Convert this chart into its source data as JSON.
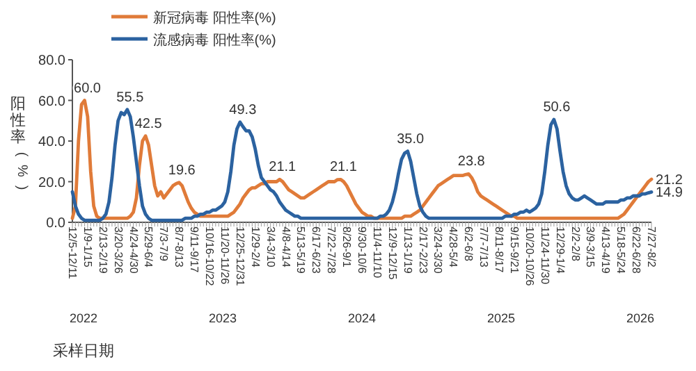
{
  "chart_data": {
    "type": "line",
    "xlabel": "采样日期",
    "ylabel": "阳性率(%)",
    "categories": [
      "12/5-12/11",
      null,
      null,
      null,
      null,
      "1/9-1/15",
      null,
      null,
      null,
      null,
      "2/13-2/19",
      null,
      null,
      null,
      null,
      "3/20-3/26",
      null,
      null,
      null,
      null,
      "4/24-4/30",
      null,
      null,
      null,
      null,
      "5/29-6/4",
      null,
      null,
      null,
      null,
      "7/3-7/9",
      null,
      null,
      null,
      null,
      "8/7-8/13",
      null,
      null,
      null,
      null,
      "9/11-9/17",
      null,
      null,
      null,
      null,
      "10/16-10/22",
      null,
      null,
      null,
      null,
      "11/20-11/26",
      null,
      null,
      null,
      null,
      "12/25-12/31",
      null,
      null,
      null,
      null,
      "1/29-2/4",
      null,
      null,
      null,
      null,
      "3/4-3/10",
      null,
      null,
      null,
      null,
      "4/8-4/14",
      null,
      null,
      null,
      null,
      "5/13-5/19",
      null,
      null,
      null,
      null,
      "6/17-6/23",
      null,
      null,
      null,
      null,
      "7/22-7/28",
      null,
      null,
      null,
      null,
      "8/26-9/1",
      null,
      null,
      null,
      null,
      "9/30-10/6",
      null,
      null,
      null,
      null,
      "11/4-11/10",
      null,
      null,
      null,
      null,
      "12/9-12/15",
      null,
      null,
      null,
      null,
      "1/13-1/19",
      null,
      null,
      null,
      null,
      "2/17-2/23",
      null,
      null,
      null,
      null,
      "3/24-3/30",
      null,
      null,
      null,
      null,
      "4/28-5/4",
      null,
      null,
      null,
      null,
      "6/2-6/8",
      null,
      null,
      null,
      null,
      "7/7-7/13",
      null,
      null,
      null,
      null,
      "8/11-8/17",
      null,
      null,
      null,
      null,
      "9/15-9/21",
      null,
      null,
      null,
      null,
      "10/20-10/26",
      null,
      null,
      null,
      null,
      "11/24-11/30",
      null,
      null,
      null,
      null,
      "12/29-1/4",
      null,
      null,
      null,
      null,
      "2/2-2/8",
      null,
      null,
      null,
      null,
      "3/9-3/15",
      null,
      null,
      null,
      null,
      "4/13-4/19",
      null,
      null,
      null,
      null,
      "5/18-5/24",
      null,
      null,
      null,
      null,
      "6/22-6/28",
      null,
      null,
      null,
      null,
      "7/27-8/2"
    ],
    "ylim": [
      0,
      80
    ],
    "yticks": [
      {
        "value": 0,
        "label": "0.0"
      },
      {
        "value": 20,
        "label": "20.0"
      },
      {
        "value": 40,
        "label": "40.0"
      },
      {
        "value": 60,
        "label": "60.0"
      },
      {
        "value": 80,
        "label": "80.0"
      }
    ],
    "legend": "top",
    "grid": false,
    "marker": "none",
    "line_style": "solid",
    "series": [
      {
        "name": "新冠病毒 阳性率(%)",
        "color": "#e07b39",
        "values": [
          2,
          8,
          40,
          58,
          60,
          52,
          25,
          8,
          3,
          2,
          2,
          2,
          2,
          2,
          2,
          2,
          2,
          2,
          2,
          3,
          5,
          12,
          28,
          40,
          42.5,
          38,
          28,
          18,
          13,
          15,
          12,
          14,
          16,
          18,
          19,
          19.6,
          18,
          14,
          10,
          7,
          5,
          4,
          3,
          3,
          3,
          3,
          3,
          3,
          3,
          3,
          3,
          3,
          4,
          5,
          7,
          9,
          12,
          14,
          16,
          17,
          17,
          18,
          19,
          19,
          20,
          20,
          20,
          20,
          21.1,
          20,
          18,
          16,
          15,
          14,
          13,
          12,
          12,
          13,
          14,
          15,
          16,
          17,
          18,
          19,
          20,
          20,
          20,
          21,
          21.1,
          20,
          18,
          15,
          12,
          9,
          7,
          5,
          4,
          3,
          3,
          2,
          2,
          2,
          2,
          2,
          2,
          2,
          2,
          2,
          2,
          3,
          3,
          3,
          4,
          5,
          6,
          8,
          10,
          12,
          14,
          16,
          18,
          19,
          20,
          21,
          22,
          23,
          23,
          23,
          23,
          23.5,
          23.8,
          22,
          19,
          15,
          13,
          12,
          11,
          10,
          9,
          8,
          7,
          6,
          5,
          4,
          3,
          3,
          2,
          2,
          2,
          2,
          2,
          2,
          2,
          2,
          2,
          2,
          2,
          2,
          2,
          2,
          2,
          2,
          2,
          2,
          2,
          2,
          2,
          2,
          2,
          2,
          2,
          2,
          2,
          2,
          2,
          2,
          2,
          2,
          2,
          2,
          3,
          4,
          6,
          8,
          10,
          12,
          14,
          16,
          18,
          20,
          21.2
        ],
        "value_labels": [
          null,
          null,
          null,
          null,
          "60.0",
          null,
          null,
          null,
          null,
          null,
          null,
          null,
          null,
          null,
          null,
          null,
          null,
          null,
          null,
          null,
          null,
          null,
          null,
          null,
          "42.5",
          null,
          null,
          null,
          null,
          null,
          null,
          null,
          null,
          null,
          null,
          "19.6",
          null,
          null,
          null,
          null,
          null,
          null,
          null,
          null,
          null,
          null,
          null,
          null,
          null,
          null,
          null,
          null,
          null,
          null,
          null,
          null,
          null,
          null,
          null,
          null,
          null,
          null,
          null,
          null,
          null,
          null,
          null,
          null,
          "21.1",
          null,
          null,
          null,
          null,
          null,
          null,
          null,
          null,
          null,
          null,
          null,
          null,
          null,
          null,
          null,
          null,
          null,
          null,
          null,
          "21.1",
          null,
          null,
          null,
          null,
          null,
          null,
          null,
          null,
          null,
          null,
          null,
          null,
          null,
          null,
          null,
          null,
          null,
          null,
          null,
          null,
          null,
          null,
          null,
          null,
          null,
          null,
          null,
          null,
          null,
          null,
          null,
          null,
          null,
          null,
          null,
          null,
          null,
          null,
          null,
          null,
          null,
          "23.8",
          null,
          null,
          null,
          null,
          null,
          null,
          null,
          null,
          null,
          null,
          null,
          null,
          null,
          null,
          null,
          null,
          null,
          null,
          null,
          null,
          null,
          null,
          null,
          null,
          null,
          null,
          null,
          null,
          null,
          null,
          null,
          null,
          null,
          null,
          null,
          null,
          null,
          null,
          null,
          null,
          null,
          null,
          null,
          null,
          null,
          null,
          null,
          null,
          null,
          null,
          null,
          null,
          null,
          null,
          null,
          null,
          null,
          null,
          null,
          "21.2"
        ]
      },
      {
        "name": "流感病毒 阳性率(%)",
        "color": "#2b62a0",
        "values": [
          15,
          8,
          4,
          2,
          1,
          1,
          1,
          1,
          1,
          1,
          2,
          4,
          10,
          22,
          38,
          50,
          54,
          53,
          55.5,
          52,
          42,
          30,
          18,
          8,
          4,
          2,
          1,
          1,
          1,
          1,
          1,
          1,
          1,
          1,
          1,
          1,
          1,
          2,
          2,
          2,
          3,
          3,
          4,
          4,
          5,
          5,
          6,
          6,
          7,
          8,
          10,
          15,
          25,
          38,
          46,
          49.3,
          47,
          45,
          45,
          42,
          36,
          28,
          22,
          20,
          18,
          16,
          15,
          13,
          10,
          8,
          6,
          5,
          4,
          3,
          3,
          2,
          2,
          2,
          2,
          2,
          2,
          2,
          2,
          2,
          2,
          2,
          2,
          2,
          2,
          2,
          2,
          2,
          2,
          2,
          2,
          2,
          2,
          2,
          2,
          2,
          2,
          3,
          3,
          4,
          6,
          10,
          16,
          24,
          31,
          34,
          35,
          30,
          22,
          14,
          8,
          5,
          3,
          2,
          2,
          2,
          2,
          2,
          2,
          2,
          2,
          2,
          2,
          2,
          2,
          2,
          2,
          2,
          2,
          2,
          2,
          2,
          2,
          2,
          2,
          2,
          2,
          2,
          3,
          3,
          3,
          4,
          4,
          5,
          5,
          6,
          5,
          6,
          7,
          9,
          14,
          25,
          38,
          48,
          50.6,
          46,
          35,
          25,
          18,
          14,
          12,
          11,
          11,
          12,
          13,
          12,
          11,
          10,
          9,
          9,
          9,
          10,
          10,
          10,
          10,
          10,
          11,
          11,
          12,
          12,
          13,
          13,
          13,
          14,
          14,
          14.5,
          14.9
        ],
        "value_labels": [
          null,
          null,
          null,
          null,
          null,
          null,
          null,
          null,
          null,
          null,
          null,
          null,
          null,
          null,
          null,
          null,
          null,
          null,
          "55.5",
          null,
          null,
          null,
          null,
          null,
          null,
          null,
          null,
          null,
          null,
          null,
          null,
          null,
          null,
          null,
          null,
          null,
          null,
          null,
          null,
          null,
          null,
          null,
          null,
          null,
          null,
          null,
          null,
          null,
          null,
          null,
          null,
          null,
          null,
          null,
          null,
          "49.3",
          null,
          null,
          null,
          null,
          null,
          null,
          null,
          null,
          null,
          null,
          null,
          null,
          null,
          null,
          null,
          null,
          null,
          null,
          null,
          null,
          null,
          null,
          null,
          null,
          null,
          null,
          null,
          null,
          null,
          null,
          null,
          null,
          null,
          null,
          null,
          null,
          null,
          null,
          null,
          null,
          null,
          null,
          null,
          null,
          null,
          null,
          null,
          null,
          null,
          null,
          null,
          null,
          null,
          null,
          "35.0",
          null,
          null,
          null,
          null,
          null,
          null,
          null,
          null,
          null,
          null,
          null,
          null,
          null,
          null,
          null,
          null,
          null,
          null,
          null,
          null,
          null,
          null,
          null,
          null,
          null,
          null,
          null,
          null,
          null,
          null,
          null,
          null,
          null,
          null,
          null,
          null,
          null,
          null,
          null,
          null,
          null,
          null,
          null,
          null,
          null,
          null,
          null,
          "50.6",
          null,
          null,
          null,
          null,
          null,
          null,
          null,
          null,
          null,
          null,
          null,
          null,
          null,
          null,
          null,
          null,
          null,
          null,
          null,
          null,
          null,
          null,
          null,
          null,
          null,
          null,
          null,
          null,
          null,
          null,
          null,
          "14.9"
        ]
      }
    ],
    "annotations": [
      "2022",
      "2023",
      "2024",
      "2025",
      "2026"
    ]
  }
}
